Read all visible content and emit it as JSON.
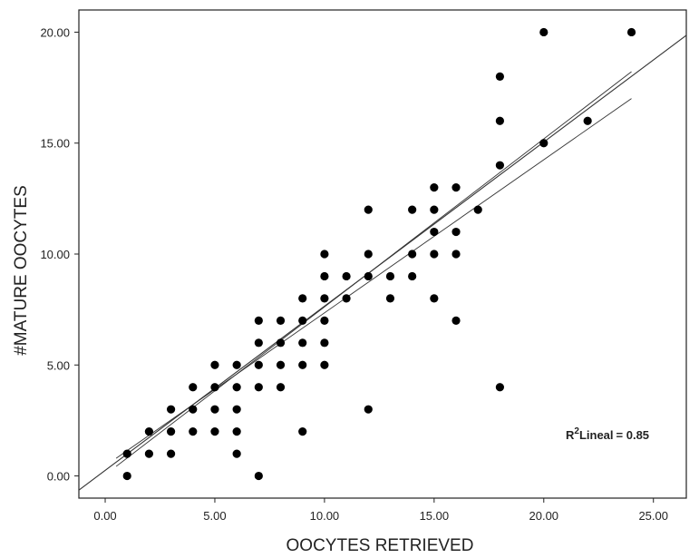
{
  "chart_data": {
    "type": "scatter",
    "xlabel": "OOCYTES RETRIEVED",
    "ylabel": "#MATURE OOCYTES",
    "xlim": [
      -1.2,
      26.5
    ],
    "ylim": [
      -1.0,
      21.0
    ],
    "xticks": [
      "0.00",
      "5.00",
      "10.00",
      "15.00",
      "20.00",
      "25.00"
    ],
    "yticks": [
      "0.00",
      "5.00",
      "10.00",
      "15.00",
      "20.00"
    ],
    "grid": false,
    "points": [
      [
        1,
        0
      ],
      [
        1,
        1
      ],
      [
        2,
        1
      ],
      [
        2,
        2
      ],
      [
        3,
        1
      ],
      [
        3,
        2
      ],
      [
        3,
        3
      ],
      [
        4,
        2
      ],
      [
        4,
        3
      ],
      [
        4,
        4
      ],
      [
        5,
        2
      ],
      [
        5,
        3
      ],
      [
        5,
        4
      ],
      [
        5,
        5
      ],
      [
        6,
        1
      ],
      [
        6,
        2
      ],
      [
        6,
        3
      ],
      [
        6,
        4
      ],
      [
        6,
        5
      ],
      [
        7,
        0
      ],
      [
        7,
        4
      ],
      [
        7,
        5
      ],
      [
        7,
        6
      ],
      [
        7,
        7
      ],
      [
        8,
        4
      ],
      [
        8,
        5
      ],
      [
        8,
        6
      ],
      [
        8,
        7
      ],
      [
        9,
        2
      ],
      [
        9,
        5
      ],
      [
        9,
        6
      ],
      [
        9,
        7
      ],
      [
        9,
        8
      ],
      [
        10,
        5
      ],
      [
        10,
        6
      ],
      [
        10,
        7
      ],
      [
        10,
        8
      ],
      [
        10,
        9
      ],
      [
        10,
        10
      ],
      [
        11,
        8
      ],
      [
        11,
        9
      ],
      [
        12,
        3
      ],
      [
        12,
        9
      ],
      [
        12,
        10
      ],
      [
        12,
        12
      ],
      [
        13,
        8
      ],
      [
        13,
        9
      ],
      [
        14,
        9
      ],
      [
        14,
        10
      ],
      [
        14,
        12
      ],
      [
        15,
        8
      ],
      [
        15,
        10
      ],
      [
        15,
        11
      ],
      [
        15,
        12
      ],
      [
        15,
        13
      ],
      [
        16,
        7
      ],
      [
        16,
        10
      ],
      [
        16,
        11
      ],
      [
        16,
        13
      ],
      [
        17,
        12
      ],
      [
        18,
        4
      ],
      [
        18,
        14
      ],
      [
        18,
        16
      ],
      [
        18,
        18
      ],
      [
        20,
        15
      ],
      [
        20,
        20
      ],
      [
        22,
        16
      ],
      [
        24,
        20
      ]
    ],
    "fit_line": {
      "intercept": 0.25,
      "slope": 0.74,
      "x_range": [
        -1.2,
        26.5
      ]
    },
    "confidence_band": {
      "upper": {
        "intercept": 0.05,
        "slope": 0.757,
        "x_range": [
          0.5,
          24
        ]
      },
      "lower": {
        "intercept": 0.45,
        "slope": 0.69,
        "x_range": [
          0.5,
          24
        ]
      }
    },
    "annotation": {
      "r2_main": "R",
      "r2_sup": "2",
      "r2_sub": "Lineal",
      "r2_value": "= 0.85"
    }
  }
}
